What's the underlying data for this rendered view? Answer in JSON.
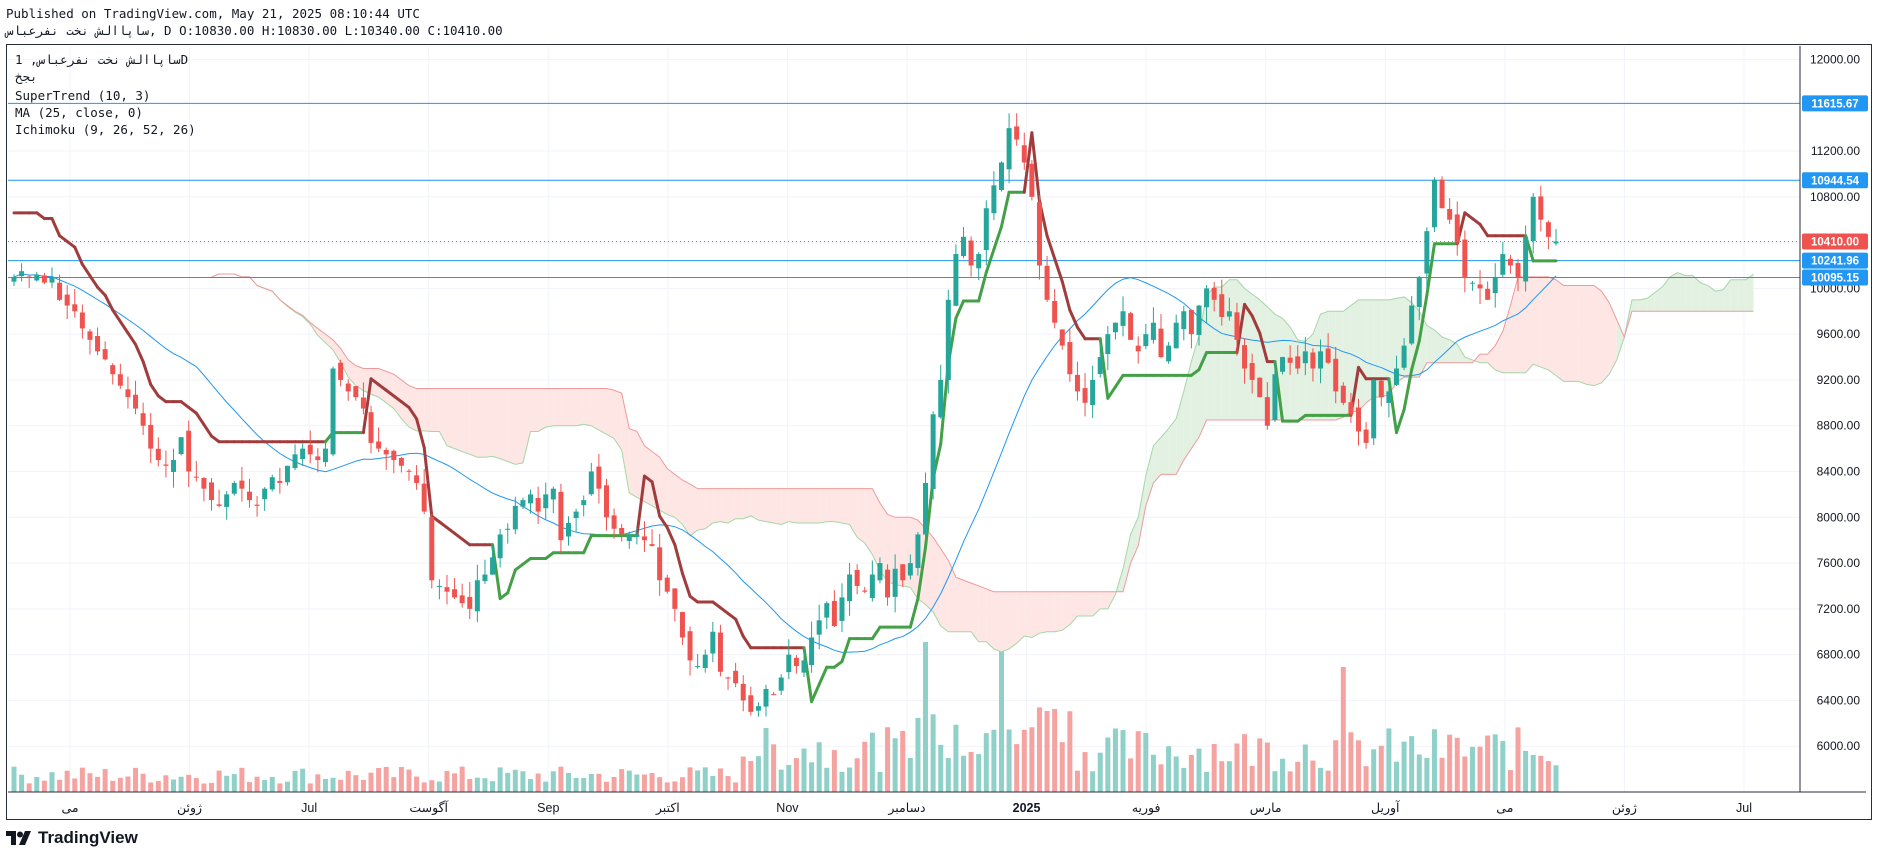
{
  "header": {
    "published": "Published on TradingView.com, May 21, 2025 08:10:44 UTC",
    "symbol": "ساپاالش نخت نفرعباس",
    "ohlc": ", D O:10830.00 H:10830.00 L:10340.00 C:10410.00"
  },
  "legend": {
    "title": "ساپاالش نخت نفرعباس, 1D",
    "exchange": "بجخ",
    "supertrend": "SuperTrend (10, 3)",
    "ma": "MA (25, close, 0)",
    "ichimoku": "Ichimoku (9, 26, 52, 26)"
  },
  "brand": {
    "name": "TradingView",
    "icon": "tradingview-logo-icon"
  },
  "colors": {
    "up": "#26a69a",
    "down": "#ef5350",
    "supertrend_up": "#43a047",
    "supertrend_down": "#a13c3c",
    "ma": "#2196f3",
    "hline": "#2196f3",
    "kumo_bull": "#e3f1e3",
    "kumo_bear": "#fde6e4"
  },
  "chart_data": {
    "type": "candlestick",
    "y_range": [
      5600,
      12100
    ],
    "y_ticks": [
      "12000.00",
      "11200.00",
      "10800.00",
      "10400.00",
      "10000.00",
      "9600.00",
      "9200.00",
      "8800.00",
      "8400.00",
      "8000.00",
      "7600.00",
      "7200.00",
      "6800.00",
      "6400.00",
      "6000.00"
    ],
    "x_labels": [
      "می",
      "ژوئن",
      "Jul",
      "آگوست",
      "Sep",
      "اکتبر",
      "Nov",
      "دسامبر",
      "2025",
      "فوریه",
      "مارس",
      "آوریل",
      "می",
      "ژوئن",
      "Jul"
    ],
    "horizontal_lines": [
      {
        "value": 11615.67,
        "label": "11615.67"
      },
      {
        "value": 10944.54,
        "label": "10944.54"
      },
      {
        "value": 10241.96,
        "label": "10241.96"
      },
      {
        "value": 10095.15,
        "label": "10095.15"
      }
    ],
    "last_price": {
      "value": 10410.0,
      "label": "10410.00"
    },
    "close": [
      10100,
      10150,
      10100,
      10120,
      10050,
      10100,
      9900,
      9850,
      9800,
      9650,
      9550,
      9450,
      9380,
      9250,
      9150,
      9050,
      8950,
      8800,
      8600,
      8500,
      8450,
      8500,
      8700,
      8400,
      8350,
      8250,
      8150,
      8100,
      8200,
      8300,
      8250,
      8150,
      8100,
      8250,
      8350,
      8300,
      8450,
      8550,
      8600,
      8550,
      8500,
      8600,
      9300,
      9200,
      9100,
      9050,
      8950,
      8650,
      8600,
      8550,
      8500,
      8450,
      8400,
      8300,
      8050,
      7450,
      7400,
      7350,
      7300,
      7250,
      7200,
      7450,
      7500,
      7650,
      7850,
      7900,
      8100,
      8150,
      8200,
      8050,
      8200,
      8250,
      7800,
      7950,
      8050,
      8150,
      8400,
      8250,
      8000,
      7900,
      7850,
      7850,
      7850,
      7800,
      7750,
      7450,
      7350,
      7200,
      6950,
      6750,
      6700,
      6800,
      7000,
      6650,
      6600,
      6550,
      6400,
      6300,
      6350,
      6500,
      6450,
      6600,
      6800,
      6700,
      6750,
      6950,
      7100,
      7250,
      7050,
      7300,
      7500,
      7400,
      7350,
      7500,
      7600,
      7300,
      7550,
      7450,
      7600,
      7850,
      8300,
      8900,
      9200,
      9900,
      10300,
      10450,
      10200,
      10300,
      10700,
      10900,
      11100,
      11400,
      11300,
      11100,
      10800,
      10200,
      9900,
      9700,
      9500,
      9250,
      9100,
      9000,
      9200,
      9400,
      9600,
      9700,
      9800,
      9550,
      9450,
      9600,
      9700,
      9400,
      9500,
      9700,
      9800,
      9600,
      9850,
      10000,
      9900,
      9750,
      9800,
      9550,
      9300,
      9200,
      9050,
      8800,
      9250,
      9400,
      9350,
      9300,
      9450,
      9300,
      9450,
      9350,
      9100,
      9000,
      8900,
      8750,
      8650,
      9200,
      9050,
      9100,
      9300,
      9500,
      9850,
      10100,
      10500,
      10950,
      10700,
      10600,
      10400,
      10100,
      10050,
      10000,
      9900,
      10100,
      10300,
      10200,
      10100,
      10450,
      10800,
      10600,
      10450,
      10410
    ],
    "sma25_note": "MA (25, close, 0)",
    "indicators": [
      "SuperTrend (10, 3)",
      "MA (25, close, 0)",
      "Ichimoku (9, 26, 52, 26)"
    ],
    "grid": true,
    "volume_pane": true
  }
}
